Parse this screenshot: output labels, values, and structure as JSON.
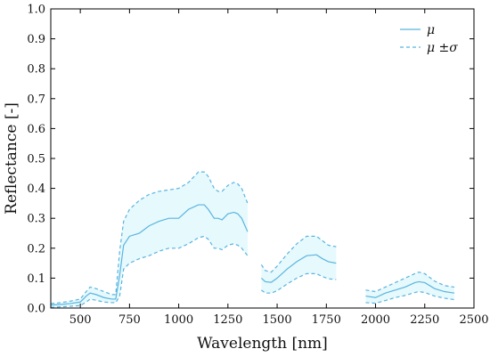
{
  "chart_data": {
    "type": "line",
    "xlabel": "Wavelength [nm]",
    "ylabel": "Reflectance [-]",
    "xlim": [
      350,
      2500
    ],
    "ylim": [
      0.0,
      1.0
    ],
    "xticks": [
      500,
      750,
      1000,
      1250,
      1500,
      1750,
      2000,
      2250,
      2500
    ],
    "xtick_labels": [
      "500",
      "750",
      "1000",
      "1250",
      "1500",
      "1750",
      "2000",
      "2250",
      "2500"
    ],
    "yticks": [
      0.0,
      0.1,
      0.2,
      0.3,
      0.4,
      0.5,
      0.6,
      0.7,
      0.8,
      0.9,
      1.0
    ],
    "ytick_labels": [
      "0.0",
      "0.1",
      "0.2",
      "0.3",
      "0.4",
      "0.5",
      "0.6",
      "0.7",
      "0.8",
      "0.9",
      "1.0"
    ],
    "grid": false,
    "legend_position": "top-right",
    "legend": [
      {
        "label": "μ",
        "style": "solid"
      },
      {
        "label": "μ ±σ",
        "style": "dashed"
      }
    ],
    "colors": {
      "line": "#5ab4e0",
      "band": "#e6f9fc"
    },
    "segments": [
      {
        "x": [
          350,
          400,
          450,
          500,
          530,
          550,
          580,
          620,
          660,
          680,
          700,
          720,
          750,
          800,
          850,
          900,
          950,
          1000,
          1050,
          1100,
          1130,
          1150,
          1180,
          1200,
          1220,
          1250,
          1280,
          1300,
          1320,
          1350
        ],
        "mean": [
          0.01,
          0.012,
          0.015,
          0.02,
          0.04,
          0.05,
          0.045,
          0.035,
          0.03,
          0.03,
          0.11,
          0.21,
          0.24,
          0.25,
          0.275,
          0.29,
          0.3,
          0.3,
          0.33,
          0.345,
          0.345,
          0.33,
          0.3,
          0.3,
          0.295,
          0.315,
          0.32,
          0.315,
          0.3,
          0.255
        ],
        "upper": [
          0.015,
          0.018,
          0.023,
          0.03,
          0.055,
          0.07,
          0.065,
          0.055,
          0.045,
          0.045,
          0.19,
          0.29,
          0.33,
          0.36,
          0.38,
          0.39,
          0.395,
          0.4,
          0.42,
          0.455,
          0.455,
          0.44,
          0.4,
          0.39,
          0.39,
          0.41,
          0.42,
          0.415,
          0.4,
          0.35
        ],
        "lower": [
          0.002,
          0.004,
          0.006,
          0.008,
          0.02,
          0.03,
          0.026,
          0.02,
          0.018,
          0.018,
          0.04,
          0.13,
          0.15,
          0.165,
          0.175,
          0.19,
          0.2,
          0.2,
          0.215,
          0.235,
          0.24,
          0.23,
          0.2,
          0.2,
          0.195,
          0.21,
          0.215,
          0.21,
          0.2,
          0.175
        ]
      },
      {
        "x": [
          1420,
          1440,
          1470,
          1500,
          1550,
          1600,
          1650,
          1700,
          1730,
          1760,
          1800
        ],
        "mean": [
          0.1,
          0.088,
          0.086,
          0.1,
          0.13,
          0.155,
          0.175,
          0.178,
          0.165,
          0.155,
          0.15
        ],
        "upper": [
          0.145,
          0.125,
          0.12,
          0.14,
          0.18,
          0.215,
          0.24,
          0.24,
          0.225,
          0.21,
          0.205
        ],
        "lower": [
          0.06,
          0.05,
          0.05,
          0.058,
          0.08,
          0.1,
          0.115,
          0.115,
          0.105,
          0.098,
          0.095
        ]
      },
      {
        "x": [
          1950,
          2000,
          2050,
          2100,
          2150,
          2200,
          2220,
          2250,
          2300,
          2350,
          2400
        ],
        "mean": [
          0.04,
          0.035,
          0.05,
          0.06,
          0.07,
          0.085,
          0.088,
          0.085,
          0.065,
          0.055,
          0.05
        ],
        "upper": [
          0.06,
          0.055,
          0.07,
          0.085,
          0.1,
          0.115,
          0.12,
          0.115,
          0.09,
          0.075,
          0.07
        ],
        "lower": [
          0.018,
          0.016,
          0.025,
          0.035,
          0.042,
          0.052,
          0.055,
          0.052,
          0.04,
          0.033,
          0.028
        ]
      }
    ]
  }
}
